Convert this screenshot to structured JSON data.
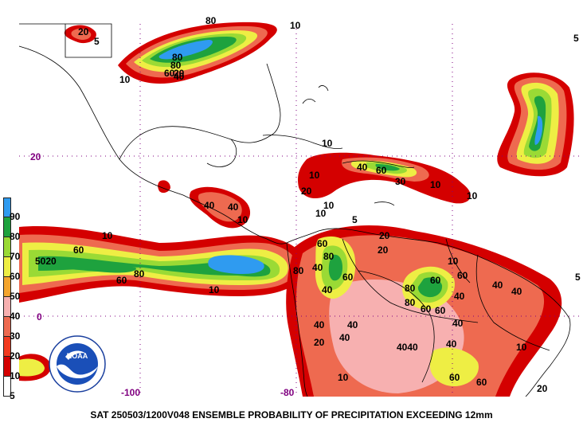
{
  "caption": "SAT 250503/1200V048  ENSEMBLE PROBABILITY OF PRECIPITATION EXCEEDING 12mm",
  "legend": {
    "levels": [
      "90",
      "80",
      "70",
      "60",
      "50",
      "40",
      "30",
      "20",
      "10",
      "5"
    ],
    "colors": [
      "#ffffff",
      "#d40000",
      "#f23a1f",
      "#ee6a50",
      "#f7b0b0",
      "#f4a52d",
      "#eeee44",
      "#9ada35",
      "#1ea23e",
      "#2f9bf0",
      "#2f9bf0"
    ]
  },
  "axes": {
    "lat_labels": [
      "20",
      "0"
    ],
    "lon_labels": [
      "-100",
      "-80"
    ]
  },
  "contour_labels": [
    {
      "t": "80"
    },
    {
      "t": "10"
    },
    {
      "t": "20"
    },
    {
      "t": "5"
    },
    {
      "t": "10"
    },
    {
      "t": "80"
    },
    {
      "t": "60"
    },
    {
      "t": "40"
    },
    {
      "t": "80"
    },
    {
      "t": "20"
    },
    {
      "t": "10"
    },
    {
      "t": "10"
    },
    {
      "t": "40"
    },
    {
      "t": "60"
    },
    {
      "t": "30"
    },
    {
      "t": "10"
    },
    {
      "t": "10"
    },
    {
      "t": "20"
    },
    {
      "t": "10"
    },
    {
      "t": "40"
    },
    {
      "t": "40"
    },
    {
      "t": "10"
    },
    {
      "t": "10"
    },
    {
      "t": "5"
    },
    {
      "t": "10"
    },
    {
      "t": "5020"
    },
    {
      "t": "60"
    },
    {
      "t": "60"
    },
    {
      "t": "80"
    },
    {
      "t": "10"
    },
    {
      "t": "80"
    },
    {
      "t": "40"
    },
    {
      "t": "60"
    },
    {
      "t": "80"
    },
    {
      "t": "60"
    },
    {
      "t": "20"
    },
    {
      "t": "80"
    },
    {
      "t": "60"
    },
    {
      "t": "40"
    },
    {
      "t": "40"
    },
    {
      "t": "40"
    },
    {
      "t": "40"
    },
    {
      "t": "4040"
    },
    {
      "t": "40"
    },
    {
      "t": "60"
    },
    {
      "t": "40"
    },
    {
      "t": "20"
    },
    {
      "t": "10"
    },
    {
      "t": "60"
    },
    {
      "t": "60"
    },
    {
      "t": "20"
    },
    {
      "t": "40"
    },
    {
      "t": "10"
    },
    {
      "t": "20"
    },
    {
      "t": "5"
    },
    {
      "t": "60"
    },
    {
      "t": "80"
    },
    {
      "t": "40"
    },
    {
      "t": "60"
    },
    {
      "t": "40"
    },
    {
      "t": "10"
    },
    {
      "t": "5"
    }
  ]
}
